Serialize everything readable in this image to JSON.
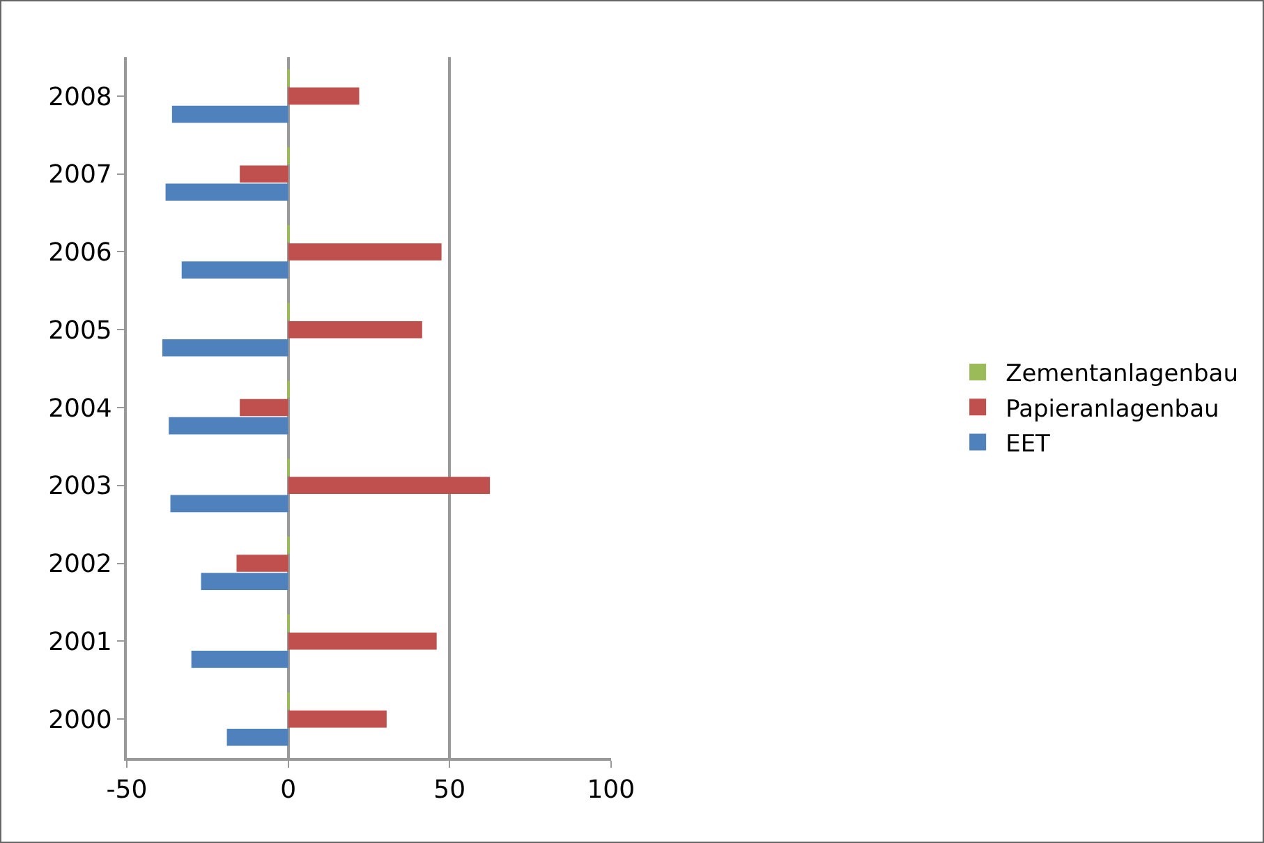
{
  "chart_data": {
    "type": "bar",
    "orientation": "horizontal",
    "categories": [
      "2008",
      "2007",
      "2006",
      "2005",
      "2004",
      "2003",
      "2002",
      "2001",
      "2000"
    ],
    "series": [
      {
        "name": "EET",
        "color": "#4f81bd",
        "values": [
          -36,
          -38,
          -33,
          -39,
          -37,
          -36.5,
          -27,
          -30,
          -19
        ]
      },
      {
        "name": "Papieranlagenbau",
        "color": "#c0504d",
        "values": [
          22,
          -15,
          47.5,
          41.5,
          -15,
          62.5,
          -16,
          46,
          30.5
        ]
      },
      {
        "name": "Zementanlagenbau",
        "color": "#9bbb59",
        "values": [
          0.5,
          0.5,
          0.5,
          0.5,
          0.5,
          0.5,
          0.5,
          0.5,
          0.5
        ]
      }
    ],
    "xlim": [
      -50,
      100
    ],
    "xticks": [
      -50,
      0,
      50,
      100
    ],
    "grid": "x",
    "legend": "right"
  }
}
